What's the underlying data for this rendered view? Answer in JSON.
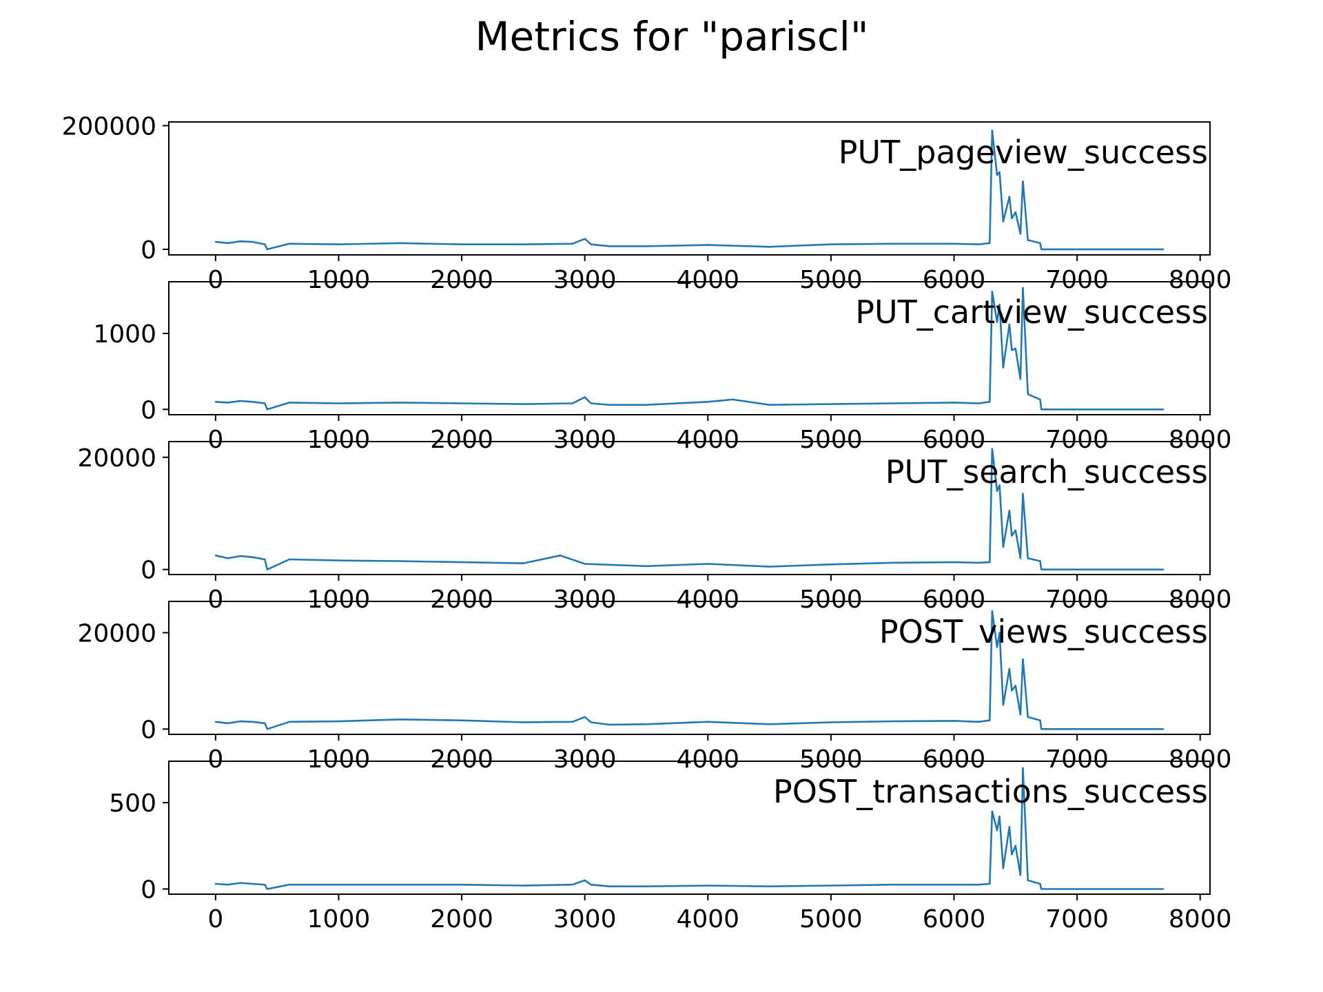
{
  "title": "Metrics for \"pariscl\"",
  "colors": {
    "line": "#1f77b4",
    "axis": "#000000",
    "background": "#ffffff"
  },
  "chart_data": [
    {
      "type": "line",
      "title": "PUT_pageview_success",
      "xlabel": "",
      "ylabel": "",
      "xlim": [
        -380,
        8080
      ],
      "ylim": [
        -9000,
        206000
      ],
      "xticks": [
        0,
        1000,
        2000,
        3000,
        4000,
        5000,
        6000,
        7000,
        8000
      ],
      "yticks": [
        0,
        200000
      ],
      "grid": false,
      "legend": "none",
      "series": [
        {
          "x": [
            0,
            100,
            200,
            300,
            400,
            420,
            600,
            1000,
            1500,
            2000,
            2500,
            2900,
            3000,
            3050,
            3200,
            3500,
            4000,
            4500,
            5000,
            5500,
            6000,
            6200,
            6290,
            6310,
            6350,
            6370,
            6400,
            6450,
            6470,
            6500,
            6540,
            6560,
            6600,
            6700,
            6710,
            7000,
            7700
          ],
          "y": [
            12000,
            10000,
            13000,
            12000,
            8000,
            0,
            9000,
            8000,
            10000,
            8000,
            8000,
            9000,
            17000,
            8000,
            5000,
            5000,
            7000,
            4000,
            8000,
            9000,
            9000,
            8000,
            10000,
            192000,
            120000,
            125000,
            45000,
            85000,
            50000,
            60000,
            25000,
            110000,
            15000,
            10000,
            0,
            0,
            0
          ]
        }
      ]
    },
    {
      "type": "line",
      "title": "PUT_cartview_success",
      "xlabel": "",
      "ylabel": "",
      "xlim": [
        -380,
        8080
      ],
      "ylim": [
        -70,
        1680
      ],
      "xticks": [
        0,
        1000,
        2000,
        3000,
        4000,
        5000,
        6000,
        7000,
        8000
      ],
      "yticks": [
        0,
        1000
      ],
      "grid": false,
      "legend": "none",
      "series": [
        {
          "x": [
            0,
            100,
            200,
            300,
            400,
            420,
            600,
            1000,
            1500,
            2000,
            2500,
            2900,
            3000,
            3050,
            3200,
            3500,
            4000,
            4200,
            4500,
            5000,
            5500,
            6000,
            6200,
            6290,
            6310,
            6350,
            6370,
            6400,
            6450,
            6470,
            6500,
            6540,
            6560,
            6600,
            6700,
            6710,
            7000,
            7700
          ],
          "y": [
            100,
            90,
            110,
            100,
            80,
            0,
            90,
            80,
            90,
            80,
            70,
            80,
            160,
            80,
            60,
            60,
            100,
            130,
            60,
            70,
            80,
            90,
            80,
            100,
            1550,
            1150,
            1380,
            550,
            1120,
            780,
            800,
            400,
            1600,
            200,
            130,
            0,
            0,
            0
          ]
        }
      ]
    },
    {
      "type": "line",
      "title": "PUT_search_success",
      "xlabel": "",
      "ylabel": "",
      "xlim": [
        -380,
        8080
      ],
      "ylim": [
        -900,
        22800
      ],
      "xticks": [
        0,
        1000,
        2000,
        3000,
        4000,
        5000,
        6000,
        7000,
        8000
      ],
      "yticks": [
        0,
        20000
      ],
      "grid": false,
      "legend": "none",
      "series": [
        {
          "x": [
            0,
            100,
            200,
            300,
            400,
            420,
            600,
            1000,
            1500,
            2000,
            2500,
            2800,
            3000,
            3500,
            4000,
            4500,
            5000,
            5500,
            6000,
            6200,
            6290,
            6310,
            6350,
            6370,
            6400,
            6450,
            6470,
            6500,
            6540,
            6560,
            6600,
            6700,
            6710,
            7000,
            7700
          ],
          "y": [
            2500,
            2000,
            2400,
            2200,
            1800,
            0,
            1800,
            1600,
            1500,
            1300,
            1100,
            2500,
            1000,
            600,
            1000,
            500,
            900,
            1200,
            1300,
            1200,
            1300,
            21500,
            14000,
            15000,
            4000,
            10500,
            6000,
            7000,
            2000,
            13500,
            2000,
            1500,
            0,
            0,
            0
          ]
        }
      ]
    },
    {
      "type": "line",
      "title": "POST_views_success",
      "xlabel": "",
      "ylabel": "",
      "xlim": [
        -380,
        8080
      ],
      "ylim": [
        -1100,
        26500
      ],
      "xticks": [
        0,
        1000,
        2000,
        3000,
        4000,
        5000,
        6000,
        7000,
        8000
      ],
      "yticks": [
        0,
        20000
      ],
      "grid": false,
      "legend": "none",
      "series": [
        {
          "x": [
            0,
            100,
            200,
            300,
            400,
            420,
            600,
            1000,
            1500,
            2000,
            2500,
            2900,
            3000,
            3050,
            3200,
            3500,
            4000,
            4500,
            5000,
            5500,
            6000,
            6200,
            6290,
            6310,
            6350,
            6370,
            6400,
            6450,
            6470,
            6500,
            6540,
            6560,
            6600,
            6700,
            6710,
            7000,
            7700
          ],
          "y": [
            1500,
            1200,
            1600,
            1500,
            1200,
            0,
            1500,
            1600,
            2000,
            1800,
            1400,
            1500,
            2500,
            1400,
            900,
            1000,
            1500,
            1000,
            1400,
            1600,
            1700,
            1500,
            1800,
            24500,
            17000,
            20000,
            5000,
            12500,
            8000,
            9000,
            3000,
            14500,
            2500,
            1800,
            0,
            0,
            0
          ]
        }
      ]
    },
    {
      "type": "line",
      "title": "POST_transactions_success",
      "xlabel": "",
      "ylabel": "",
      "xlim": [
        -380,
        8080
      ],
      "ylim": [
        -30,
        740
      ],
      "xticks": [
        0,
        1000,
        2000,
        3000,
        4000,
        5000,
        6000,
        7000,
        8000
      ],
      "yticks": [
        0,
        500
      ],
      "grid": false,
      "legend": "none",
      "series": [
        {
          "x": [
            0,
            100,
            200,
            300,
            400,
            420,
            600,
            1000,
            1500,
            2000,
            2500,
            2900,
            3000,
            3050,
            3200,
            3500,
            4000,
            4500,
            5000,
            5500,
            6000,
            6200,
            6290,
            6310,
            6350,
            6370,
            6400,
            6450,
            6470,
            6500,
            6540,
            6560,
            6600,
            6700,
            6710,
            7000,
            7700
          ],
          "y": [
            30,
            25,
            35,
            30,
            25,
            0,
            25,
            25,
            25,
            25,
            20,
            25,
            50,
            25,
            15,
            15,
            20,
            15,
            20,
            25,
            25,
            25,
            30,
            450,
            340,
            420,
            120,
            360,
            200,
            250,
            80,
            700,
            50,
            30,
            0,
            0,
            0
          ]
        }
      ]
    }
  ]
}
